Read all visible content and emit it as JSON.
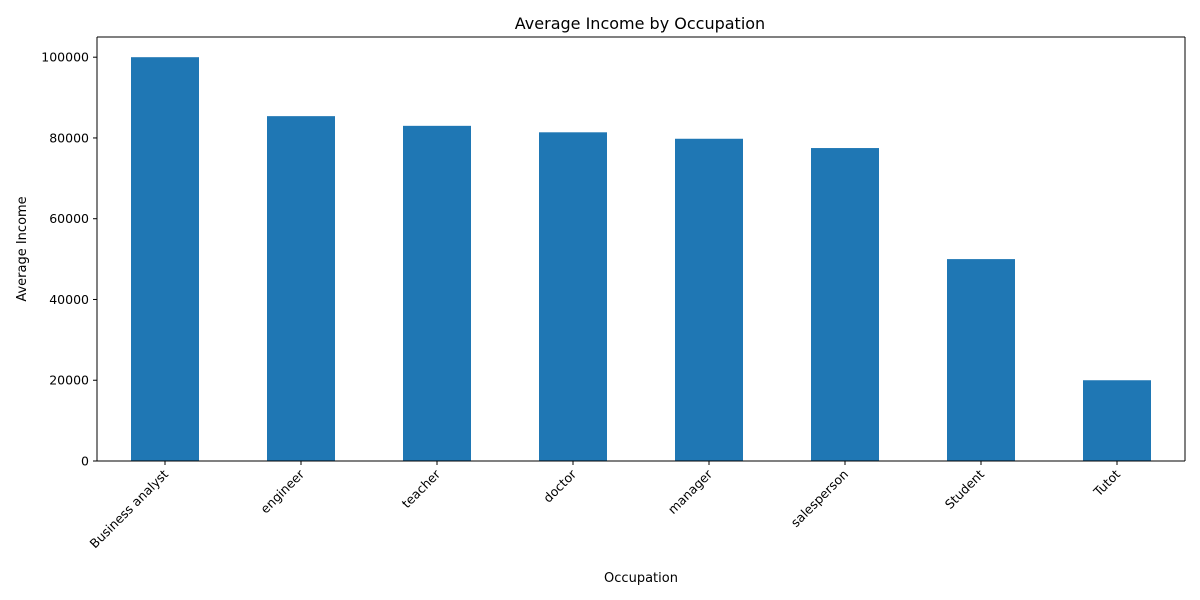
{
  "chart_data": {
    "type": "bar",
    "title": "Average Income by Occupation",
    "xlabel": "Occupation",
    "ylabel": "Average Income",
    "categories": [
      "Business analyst",
      "engineer",
      "teacher",
      "doctor",
      "manager",
      "salesperson",
      "Student",
      "Tutot"
    ],
    "values": [
      100000,
      85400,
      83000,
      81400,
      79800,
      77500,
      50000,
      20000
    ],
    "ylim": [
      0,
      105000
    ],
    "yticks": [
      0,
      20000,
      40000,
      60000,
      80000,
      100000
    ],
    "bar_color": "#1f77b4",
    "grid": false,
    "legend": "none"
  }
}
